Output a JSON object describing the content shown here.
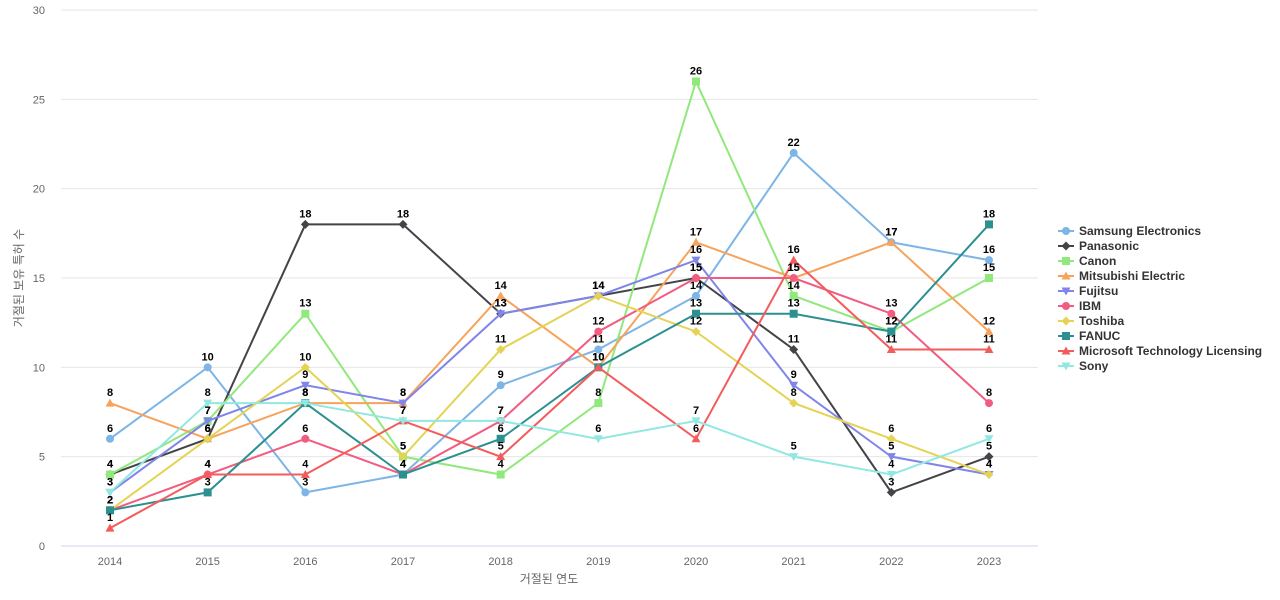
{
  "chart_data": {
    "type": "line",
    "xlabel": "거절된 연도",
    "ylabel": "거절된 보유 특허 수",
    "ylim": [
      0,
      30
    ],
    "yticks": [
      0,
      5,
      10,
      15,
      20,
      25,
      30
    ],
    "grid": true,
    "legend_position": "right",
    "categories": [
      "2014",
      "2015",
      "2016",
      "2017",
      "2018",
      "2019",
      "2020",
      "2021",
      "2022",
      "2023"
    ],
    "series": [
      {
        "name": "Samsung Electronics",
        "color": "#7cb5e6",
        "marker": "circle",
        "values": [
          6,
          10,
          3,
          4,
          9,
          11,
          14,
          22,
          17,
          16
        ]
      },
      {
        "name": "Panasonic",
        "color": "#434348",
        "marker": "diamond",
        "values": [
          4,
          6,
          18,
          18,
          13,
          14,
          15,
          11,
          3,
          5
        ]
      },
      {
        "name": "Canon",
        "color": "#91e87c",
        "marker": "square",
        "values": [
          4,
          7,
          13,
          5,
          4,
          8,
          26,
          14,
          12,
          15
        ]
      },
      {
        "name": "Mitsubishi Electric",
        "color": "#f7a35c",
        "marker": "triangle",
        "values": [
          8,
          6,
          8,
          8,
          14,
          10,
          17,
          15,
          17,
          12
        ]
      },
      {
        "name": "Fujitsu",
        "color": "#8085e9",
        "marker": "triangle-down",
        "values": [
          3,
          7,
          9,
          8,
          13,
          14,
          16,
          9,
          5,
          4
        ]
      },
      {
        "name": "IBM",
        "color": "#f15c80",
        "marker": "circle",
        "values": [
          2,
          4,
          6,
          4,
          7,
          12,
          15,
          15,
          13,
          8
        ]
      },
      {
        "name": "Toshiba",
        "color": "#e4d354",
        "marker": "diamond",
        "values": [
          2,
          6,
          10,
          5,
          11,
          14,
          12,
          8,
          6,
          4
        ]
      },
      {
        "name": "FANUC",
        "color": "#2b908f",
        "marker": "square",
        "values": [
          2,
          3,
          8,
          4,
          6,
          10,
          13,
          13,
          12,
          18
        ]
      },
      {
        "name": "Microsoft Technology Licensing",
        "color": "#f45b5b",
        "marker": "triangle",
        "values": [
          1,
          4,
          4,
          7,
          5,
          10,
          6,
          16,
          11,
          11
        ]
      },
      {
        "name": "Sony",
        "color": "#91e8e1",
        "marker": "triangle-down",
        "values": [
          3,
          8,
          8,
          7,
          7,
          6,
          7,
          5,
          4,
          6
        ]
      }
    ]
  }
}
